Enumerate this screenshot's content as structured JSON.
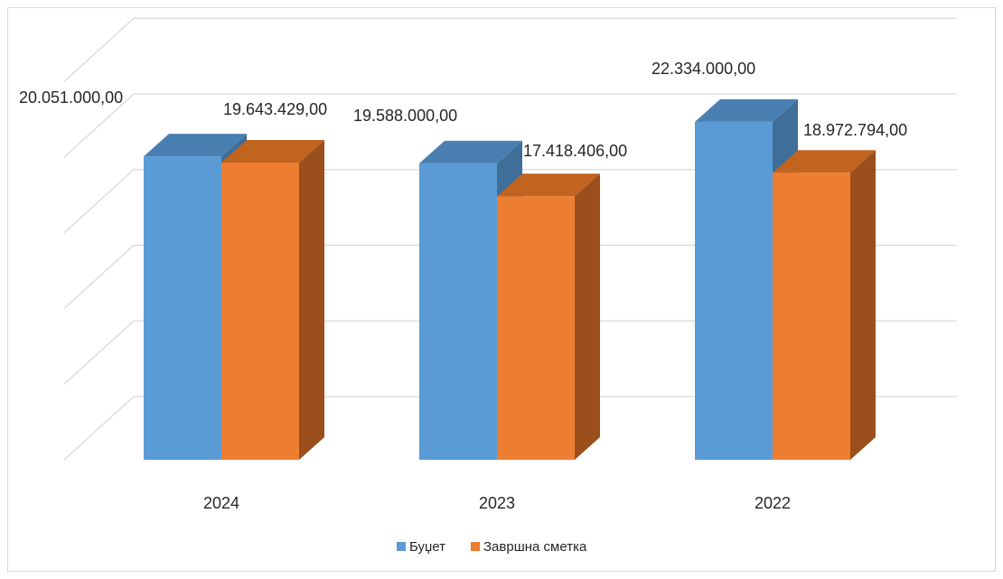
{
  "chart_data": {
    "type": "bar",
    "categories": [
      "2024",
      "2023",
      "2022"
    ],
    "series": [
      {
        "name": "Буџет",
        "values": [
          20051000,
          19588000,
          22334000
        ],
        "labels": [
          "20.051.000,00",
          "19.588.000,00",
          "22.334.000,00"
        ],
        "color": "#5b9bd5",
        "side_color": "#3f6e99",
        "top_color": "#4a7fb2"
      },
      {
        "name": "Завршна сметка",
        "values": [
          19643429,
          17418406,
          18972794
        ],
        "labels": [
          "19.643.429,00",
          "17.418.406,00",
          "18.972.794,00"
        ],
        "color": "#ed7d31",
        "side_color": "#9a4f1d",
        "top_color": "#c0641f"
      }
    ],
    "ylim": [
      0,
      25000000
    ],
    "grid": true,
    "three_d": true,
    "legend": "bottom"
  }
}
